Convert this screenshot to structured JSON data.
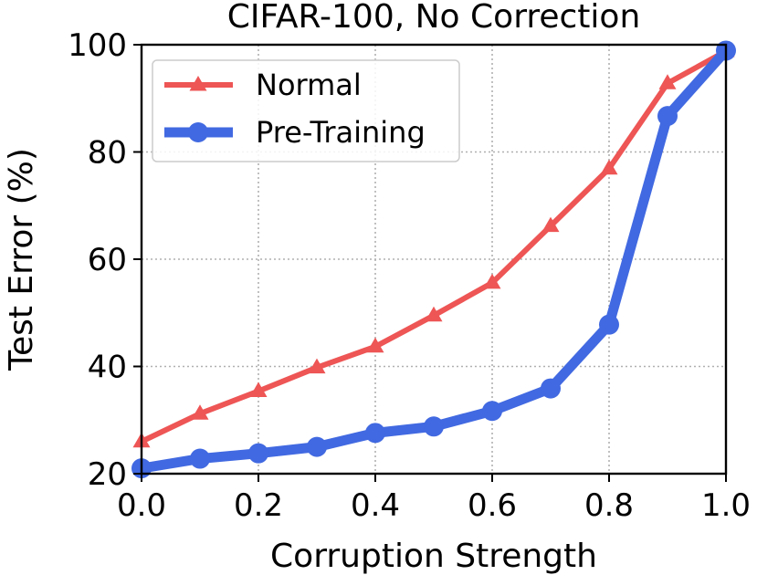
{
  "chart_data": {
    "type": "line",
    "title": "CIFAR-100, No Correction",
    "xlabel": "Corruption Strength",
    "ylabel": "Test Error (%)",
    "xlim": [
      0.0,
      1.0
    ],
    "ylim": [
      20,
      100
    ],
    "xticks": [
      0.0,
      0.2,
      0.4,
      0.6,
      0.8,
      1.0
    ],
    "xtick_labels": [
      "0.0",
      "0.2",
      "0.4",
      "0.6",
      "0.8",
      "1.0"
    ],
    "yticks": [
      20,
      40,
      60,
      80,
      100
    ],
    "ytick_labels": [
      "20",
      "40",
      "60",
      "80",
      "100"
    ],
    "grid": true,
    "legend_position": "top-left",
    "x": [
      0.0,
      0.1,
      0.2,
      0.3,
      0.4,
      0.5,
      0.6,
      0.7,
      0.8,
      0.9,
      1.0
    ],
    "series": [
      {
        "name": "Normal",
        "color": "#ee5555",
        "marker": "triangle",
        "values": [
          26.0,
          31.2,
          35.4,
          39.8,
          43.7,
          49.5,
          55.6,
          66.2,
          76.9,
          92.8,
          98.8
        ]
      },
      {
        "name": "Pre-Training",
        "color": "#4169e1",
        "marker": "circle",
        "values": [
          21.0,
          22.8,
          23.8,
          25.0,
          27.6,
          28.8,
          31.7,
          35.9,
          47.8,
          86.7,
          98.9
        ]
      }
    ]
  }
}
